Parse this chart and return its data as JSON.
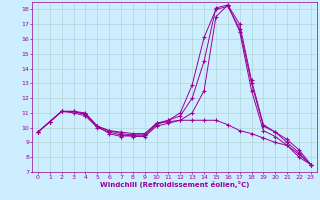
{
  "xlabel": "Windchill (Refroidissement éolien,°C)",
  "bg_color": "#cceeff",
  "line_color": "#990099",
  "grid_color": "#aacccc",
  "xlim": [
    -0.5,
    23.5
  ],
  "ylim": [
    7,
    18.5
  ],
  "xticks": [
    0,
    1,
    2,
    3,
    4,
    5,
    6,
    7,
    8,
    9,
    10,
    11,
    12,
    13,
    14,
    15,
    16,
    17,
    18,
    19,
    20,
    21,
    22,
    23
  ],
  "yticks": [
    7,
    8,
    9,
    10,
    11,
    12,
    13,
    14,
    15,
    16,
    17,
    18
  ],
  "curve1_x": [
    0,
    1,
    2,
    3,
    4,
    5,
    6,
    7,
    8,
    9,
    10,
    11,
    12,
    13,
    14,
    15,
    16,
    17,
    18,
    19,
    20,
    21,
    22,
    23
  ],
  "curve1_y": [
    9.7,
    10.4,
    11.1,
    11.1,
    11.0,
    10.1,
    9.6,
    9.4,
    9.5,
    9.5,
    10.3,
    10.4,
    10.5,
    10.5,
    10.5,
    10.5,
    10.2,
    9.8,
    9.6,
    9.3,
    9.0,
    8.8,
    8.2,
    7.5
  ],
  "curve2_x": [
    0,
    1,
    2,
    3,
    4,
    5,
    6,
    7,
    8,
    9,
    10,
    11,
    12,
    13,
    14,
    15,
    16,
    17,
    18,
    19,
    20,
    21,
    22,
    23
  ],
  "curve2_y": [
    9.7,
    10.4,
    11.1,
    11.1,
    10.9,
    10.1,
    9.8,
    9.7,
    9.6,
    9.6,
    10.3,
    10.5,
    11.0,
    12.9,
    16.1,
    18.0,
    18.2,
    16.7,
    13.0,
    10.1,
    9.7,
    9.0,
    8.3,
    7.5
  ],
  "curve3_x": [
    0,
    1,
    2,
    3,
    4,
    5,
    6,
    7,
    8,
    9,
    10,
    11,
    12,
    13,
    14,
    15,
    16,
    17,
    18,
    19,
    20,
    21,
    22,
    23
  ],
  "curve3_y": [
    9.7,
    10.4,
    11.1,
    11.1,
    10.9,
    10.1,
    9.8,
    9.6,
    9.5,
    9.5,
    10.2,
    10.5,
    10.8,
    12.0,
    14.5,
    18.1,
    18.3,
    17.0,
    13.2,
    10.2,
    9.7,
    9.2,
    8.5,
    7.5
  ],
  "curve4_x": [
    0,
    1,
    2,
    3,
    4,
    5,
    6,
    7,
    8,
    9,
    10,
    11,
    12,
    13,
    14,
    15,
    16,
    17,
    18,
    19,
    20,
    21,
    22,
    23
  ],
  "curve4_y": [
    9.7,
    10.4,
    11.1,
    11.0,
    10.8,
    10.0,
    9.7,
    9.5,
    9.4,
    9.4,
    10.1,
    10.3,
    10.5,
    11.0,
    12.5,
    17.5,
    18.3,
    16.5,
    12.5,
    9.8,
    9.4,
    8.8,
    8.0,
    7.5
  ]
}
